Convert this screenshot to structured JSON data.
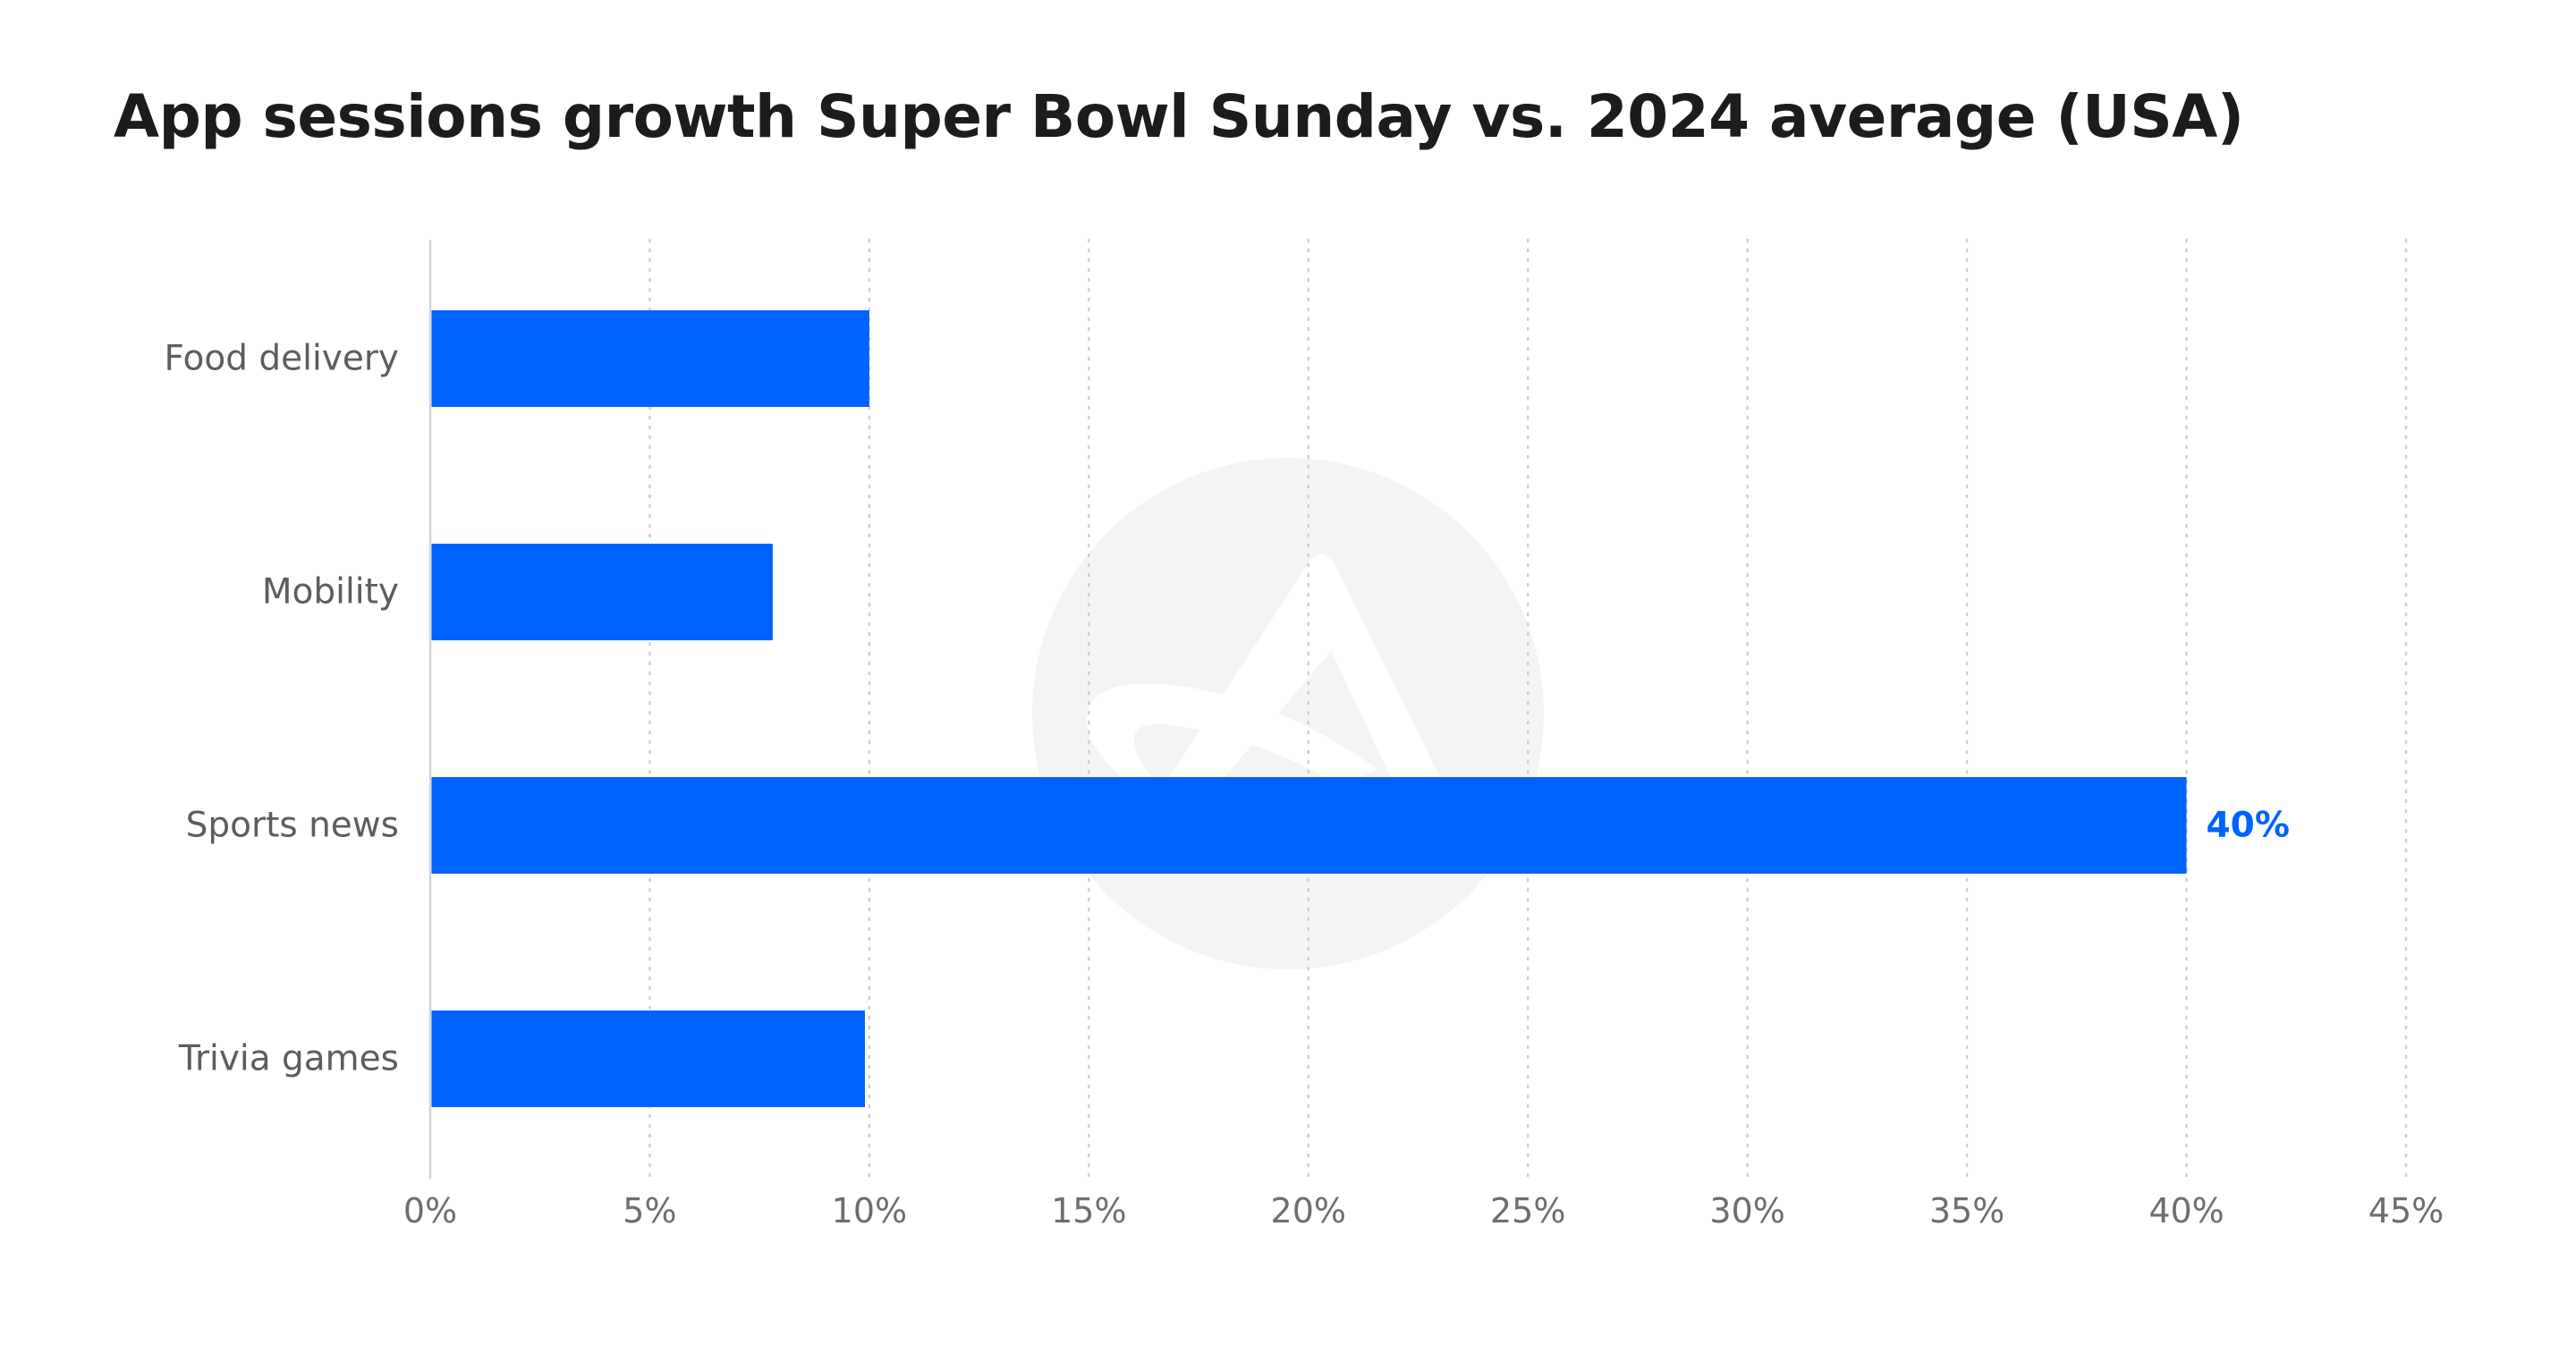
{
  "chart_data": {
    "type": "bar",
    "orientation": "horizontal",
    "title": "App sessions growth Super Bowl Sunday vs. 2024 average (USA)",
    "categories": [
      "Food delivery",
      "Mobility",
      "Sports news",
      "Trivia games"
    ],
    "values": [
      10,
      7.8,
      40,
      9.9
    ],
    "xlim": [
      0,
      45
    ],
    "xticks": [
      0,
      5,
      10,
      15,
      20,
      25,
      30,
      35,
      40,
      45
    ],
    "xtick_labels": [
      "0%",
      "5%",
      "10%",
      "15%",
      "20%",
      "25%",
      "30%",
      "35%",
      "40%",
      "45%"
    ],
    "data_labels": [
      {
        "category": "Sports news",
        "text": "40%"
      }
    ],
    "xlabel": "",
    "ylabel": "",
    "grid": "vertical dotted",
    "legend": "none"
  },
  "colors": {
    "bar": "#0062ff",
    "data_label": "#0062ff",
    "grid": "#cfcfcf",
    "axis": "#d4d4d4",
    "watermark": "#f4f4f4"
  },
  "watermark": {
    "icon": "logo-watermark-icon"
  }
}
